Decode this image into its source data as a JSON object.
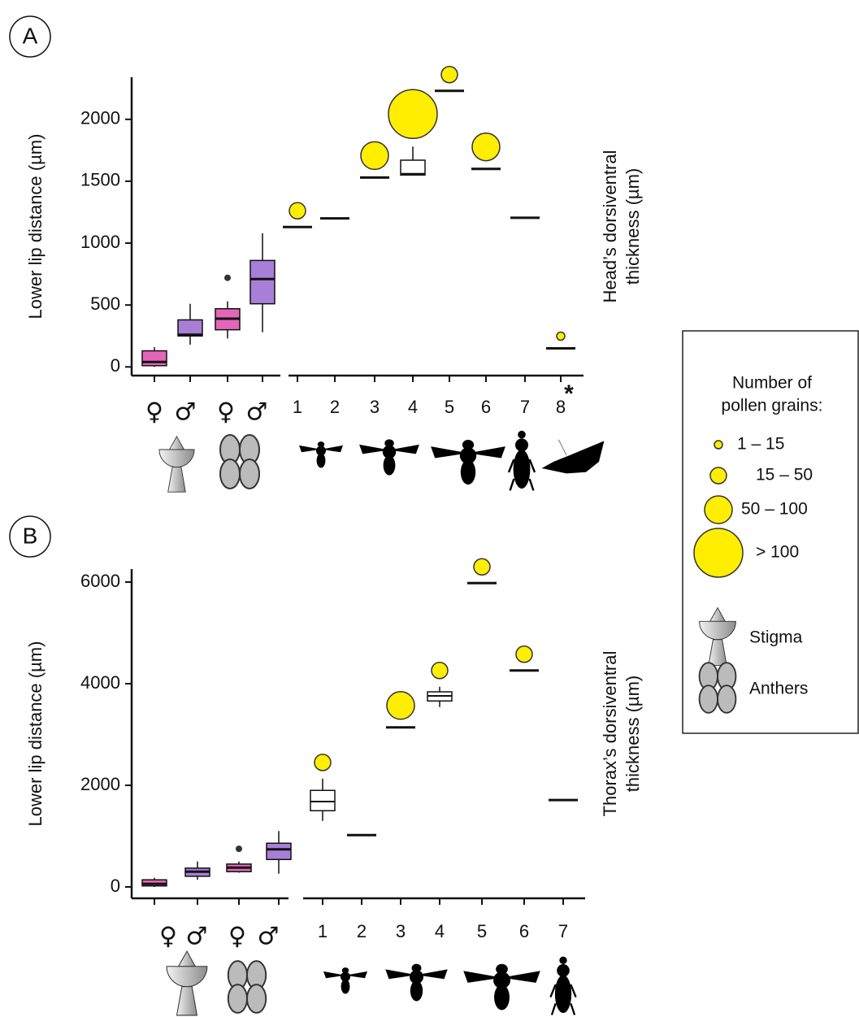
{
  "chart_data": [
    {
      "type": "box",
      "panel": "A",
      "y_label": "Lower lip distance (µm)",
      "right_label": [
        "Head’s dorsiventral",
        "thickness (µm)"
      ],
      "ylim": [
        -70,
        2340
      ],
      "yticks": [
        0,
        500,
        1000,
        1500,
        2000
      ],
      "flowers": {
        "symbols": [
          "♀",
          "♂",
          "♀",
          "♂"
        ],
        "colors": [
          "#e466b8",
          "#a77fd8",
          "#e466b8",
          "#a77fd8"
        ],
        "min": [
          0,
          180,
          230,
          280
        ],
        "q1": [
          10,
          250,
          300,
          510
        ],
        "median": [
          40,
          260,
          390,
          710
        ],
        "q3": [
          130,
          380,
          470,
          860
        ],
        "max": [
          160,
          510,
          530,
          1080
        ],
        "outliers": [
          [],
          [],
          [
            720
          ],
          []
        ]
      },
      "pollinators": {
        "categories": [
          "1",
          "2",
          "3",
          "4",
          "5",
          "6",
          "7",
          "8"
        ],
        "thickness": [
          1130,
          1200,
          1530,
          {
            "min": 1550,
            "q1": 1550,
            "median": 1560,
            "q3": 1670,
            "max": 1780
          },
          2230,
          1600,
          1205,
          150
        ],
        "pollen_class": [
          1,
          null,
          2,
          3,
          1,
          2,
          null,
          0
        ],
        "annotation": "*"
      }
    },
    {
      "type": "box",
      "panel": "B",
      "y_label": "Lower lip distance (µm)",
      "right_label": [
        "Thorax’s dorsiventral",
        "thickness (µm)"
      ],
      "ylim": [
        -224,
        6256
      ],
      "yticks": [
        0,
        2000,
        4000,
        6000
      ],
      "flowers": {
        "symbols": [
          "♀",
          "♂",
          "♀",
          "♂"
        ],
        "colors": [
          "#e466b8",
          "#a77fd8",
          "#e466b8",
          "#a77fd8"
        ],
        "min": [
          0,
          140,
          280,
          260
        ],
        "q1": [
          20,
          210,
          300,
          540
        ],
        "median": [
          60,
          300,
          380,
          740
        ],
        "q3": [
          140,
          370,
          450,
          860
        ],
        "max": [
          180,
          500,
          500,
          1100
        ],
        "outliers": [
          [],
          [],
          [
            750
          ],
          []
        ]
      },
      "pollinators": {
        "categories": [
          "1",
          "2",
          "3",
          "4",
          "5",
          "6",
          "7"
        ],
        "thickness": [
          {
            "min": 1300,
            "q1": 1500,
            "median": 1680,
            "q3": 1900,
            "max": 2130
          },
          1020,
          3140,
          {
            "min": 3540,
            "q1": 3660,
            "median": 3760,
            "q3": 3840,
            "max": 3940
          },
          5980,
          4260,
          1710
        ],
        "pollen_class": [
          1,
          null,
          2,
          1,
          1,
          1,
          null
        ]
      }
    }
  ],
  "legend": {
    "title": [
      "Number of",
      "pollen grains:"
    ],
    "pollen_classes": [
      "1 – 15",
      "15 – 50",
      "50 – 100",
      "> 100"
    ],
    "icons": [
      "Stigma",
      "Anthers"
    ]
  }
}
